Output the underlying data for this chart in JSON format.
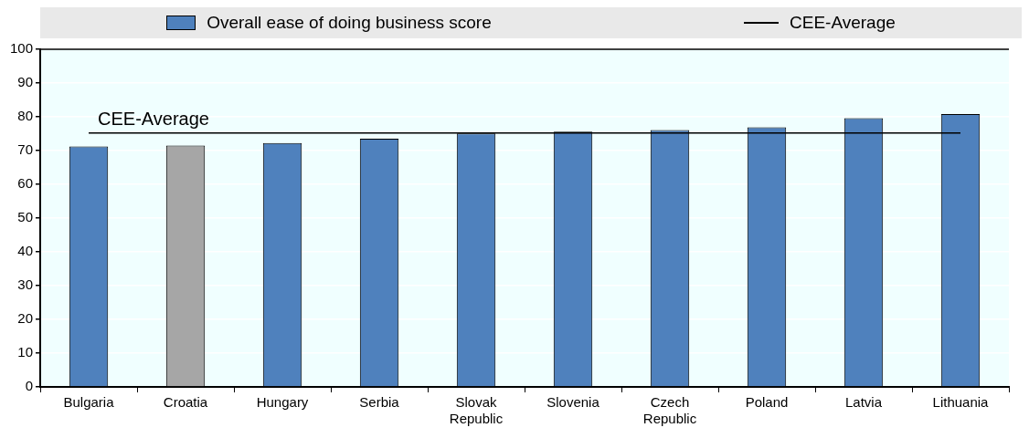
{
  "chart_data": {
    "type": "bar",
    "categories": [
      "Bulgaria",
      "Croatia",
      "Hungary",
      "Serbia",
      "Slovak Republic",
      "Slovenia",
      "Czech Republic",
      "Poland",
      "Latvia",
      "Lithuania"
    ],
    "series": [
      {
        "name": "Overall ease of doing business score",
        "color": "#4f81bd",
        "colors": [
          "#4f81bd",
          "#a6a6a6",
          "#4f81bd",
          "#4f81bd",
          "#4f81bd",
          "#4f81bd",
          "#4f81bd",
          "#4f81bd",
          "#4f81bd",
          "#4f81bd"
        ],
        "values": [
          71.2,
          71.5,
          72.2,
          73.5,
          75.1,
          75.6,
          76.1,
          76.9,
          79.6,
          80.8
        ]
      },
      {
        "name": "CEE-Average",
        "type": "line",
        "color": "#000000",
        "values": [
          75.2,
          75.2,
          75.2,
          75.2,
          75.2,
          75.2,
          75.2,
          75.2,
          75.2,
          75.2
        ]
      }
    ],
    "annotations": [
      "CEE-Average"
    ],
    "ylim": [
      0,
      100
    ],
    "yticks": [
      0,
      10,
      20,
      30,
      40,
      50,
      60,
      70,
      80,
      90,
      100
    ],
    "grid": "y",
    "legend": "top",
    "marker": "none"
  }
}
